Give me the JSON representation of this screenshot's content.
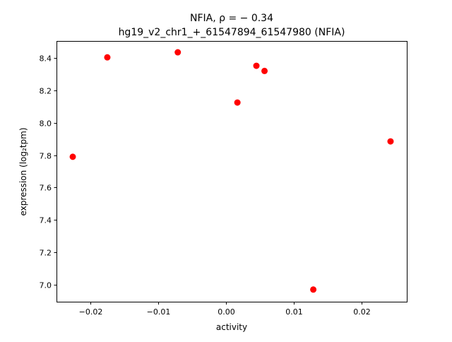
{
  "chart_data": {
    "type": "scatter",
    "title_line1": "NFIA, ρ = − 0.34",
    "title_line2": "hg19_v2_chr1_+_61547894_61547980 (NFIA)",
    "xlabel": "activity",
    "ylabel": "expression (log₂tpm)",
    "xlim": [
      -0.025,
      0.0267
    ],
    "ylim": [
      6.895,
      8.505
    ],
    "xticks": [
      -0.02,
      -0.01,
      0.0,
      0.01,
      0.02
    ],
    "xtick_labels": [
      "−0.02",
      "−0.01",
      "0.00",
      "0.01",
      "0.02"
    ],
    "yticks": [
      7.0,
      7.2,
      7.4,
      7.6,
      7.8,
      8.0,
      8.2,
      8.4
    ],
    "ytick_labels": [
      "7.0",
      "7.2",
      "7.4",
      "7.6",
      "7.8",
      "8.0",
      "8.2",
      "8.4"
    ],
    "grid": false,
    "marker_color": "#ff0000",
    "points": [
      {
        "x": -0.0226,
        "y": 7.79
      },
      {
        "x": -0.0175,
        "y": 8.404
      },
      {
        "x": -0.0071,
        "y": 8.435
      },
      {
        "x": 0.0017,
        "y": 8.125
      },
      {
        "x": 0.0045,
        "y": 8.352
      },
      {
        "x": 0.0057,
        "y": 8.32
      },
      {
        "x": 0.0129,
        "y": 6.97
      },
      {
        "x": 0.0243,
        "y": 7.885
      }
    ]
  }
}
